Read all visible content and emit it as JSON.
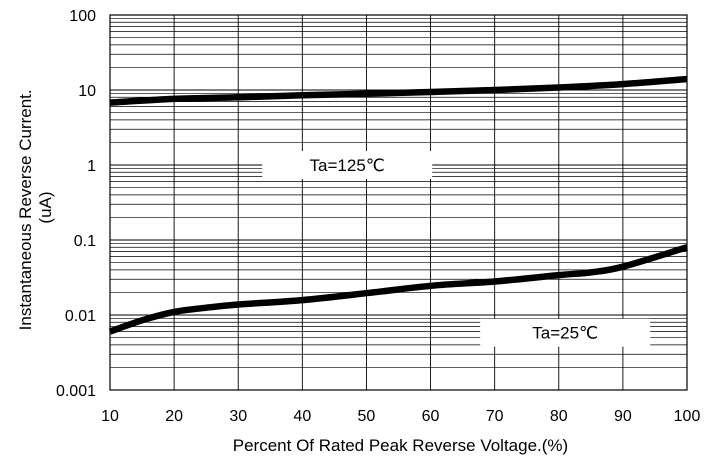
{
  "chart_data": {
    "type": "line",
    "title": "",
    "xlabel": "Percent Of Rated Peak Reverse Voltage.(%)",
    "ylabel": [
      "Instantaneous Reverse Current.",
      "(uA)"
    ],
    "xlim": [
      10,
      100
    ],
    "ylim": [
      0.001,
      100
    ],
    "yscale": "log",
    "grid": true,
    "xticks": [
      10,
      20,
      30,
      40,
      50,
      60,
      70,
      80,
      90,
      100
    ],
    "xtick_labels": [
      "10",
      "20",
      "30",
      "40",
      "50",
      "60",
      "70",
      "80",
      "90",
      "100"
    ],
    "yticks": [
      0.001,
      0.01,
      0.1,
      1,
      10,
      100
    ],
    "ytick_labels": [
      "0.001",
      "0.01",
      "0.1",
      "1",
      "10",
      "100"
    ],
    "series": [
      {
        "name": "Ta=125℃",
        "x": [
          10,
          20,
          30,
          40,
          50,
          60,
          70,
          80,
          90,
          100
        ],
        "y": [
          6.8,
          7.6,
          8.0,
          8.5,
          8.9,
          9.4,
          10.0,
          10.8,
          12.0,
          14.0
        ]
      },
      {
        "name": "Ta=25℃",
        "x": [
          10,
          15,
          20,
          25,
          30,
          40,
          50,
          60,
          70,
          80,
          85,
          90,
          100
        ],
        "y": [
          0.006,
          0.0085,
          0.011,
          0.0125,
          0.0138,
          0.0158,
          0.0195,
          0.0245,
          0.028,
          0.034,
          0.037,
          0.044,
          0.08
        ]
      }
    ],
    "annotations": [
      {
        "text": "Ta=125℃",
        "at": [
          47,
          1
        ]
      },
      {
        "text": "Ta=25℃",
        "at": [
          81,
          0.0058
        ]
      }
    ]
  }
}
